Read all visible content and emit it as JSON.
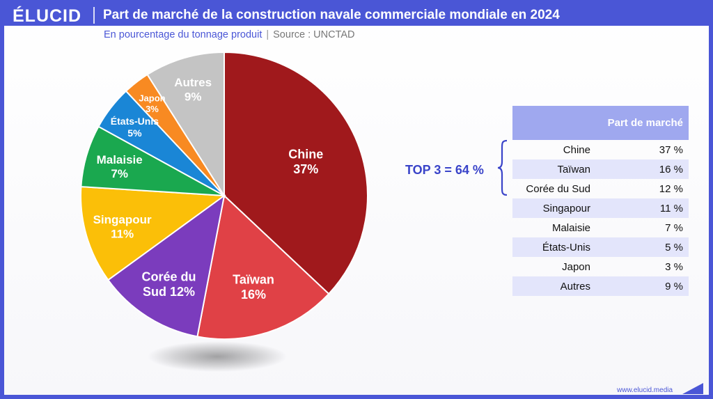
{
  "header": {
    "brand": "ÉLUCID",
    "title": "Part de marché de la construction navale commerciale mondiale en 2024"
  },
  "subtitle": {
    "measure": "En pourcentage du tonnage produit",
    "separator": "|",
    "source": "Source : UNCTAD"
  },
  "chart_data": {
    "type": "pie",
    "title": "Part de marché de la construction navale commerciale mondiale en 2024",
    "slices": [
      {
        "label": "Chine",
        "value": 37,
        "value_label": "37%",
        "color": "#a0191c"
      },
      {
        "label": "Taïwan",
        "value": 16,
        "value_label": "16%",
        "color": "#e04146"
      },
      {
        "label": "Corée du Sud",
        "value": 12,
        "value_label": "12%",
        "color": "#7b3cbd"
      },
      {
        "label": "Singapour",
        "value": 11,
        "value_label": "11%",
        "color": "#fbbf08"
      },
      {
        "label": "Malaisie",
        "value": 7,
        "value_label": "7%",
        "color": "#1aa84f"
      },
      {
        "label": "États-Unis",
        "value": 5,
        "value_label": "5%",
        "color": "#1a86d6"
      },
      {
        "label": "Japon",
        "value": 3,
        "value_label": "3%",
        "color": "#f88a22"
      },
      {
        "label": "Autres",
        "value": 9,
        "value_label": "9%",
        "color": "#c4c4c4"
      }
    ]
  },
  "annotation": {
    "top3": "TOP 3 = 64 %"
  },
  "table": {
    "header": "Part de marché",
    "rows": [
      {
        "name": "Chine",
        "value": "37 %"
      },
      {
        "name": "Taïwan",
        "value": "16 %"
      },
      {
        "name": "Corée du Sud",
        "value": "12 %"
      },
      {
        "name": "Singapour",
        "value": "11 %"
      },
      {
        "name": "Malaisie",
        "value": "7 %"
      },
      {
        "name": "États-Unis",
        "value": "5 %"
      },
      {
        "name": "Japon",
        "value": "3 %"
      },
      {
        "name": "Autres",
        "value": "9 %"
      }
    ]
  },
  "footer": {
    "url": "www.elucid.media"
  },
  "colors": {
    "brand": "#4a56d6",
    "table_header": "#9fa8ef",
    "table_alt_row": "#e3e5fb"
  }
}
